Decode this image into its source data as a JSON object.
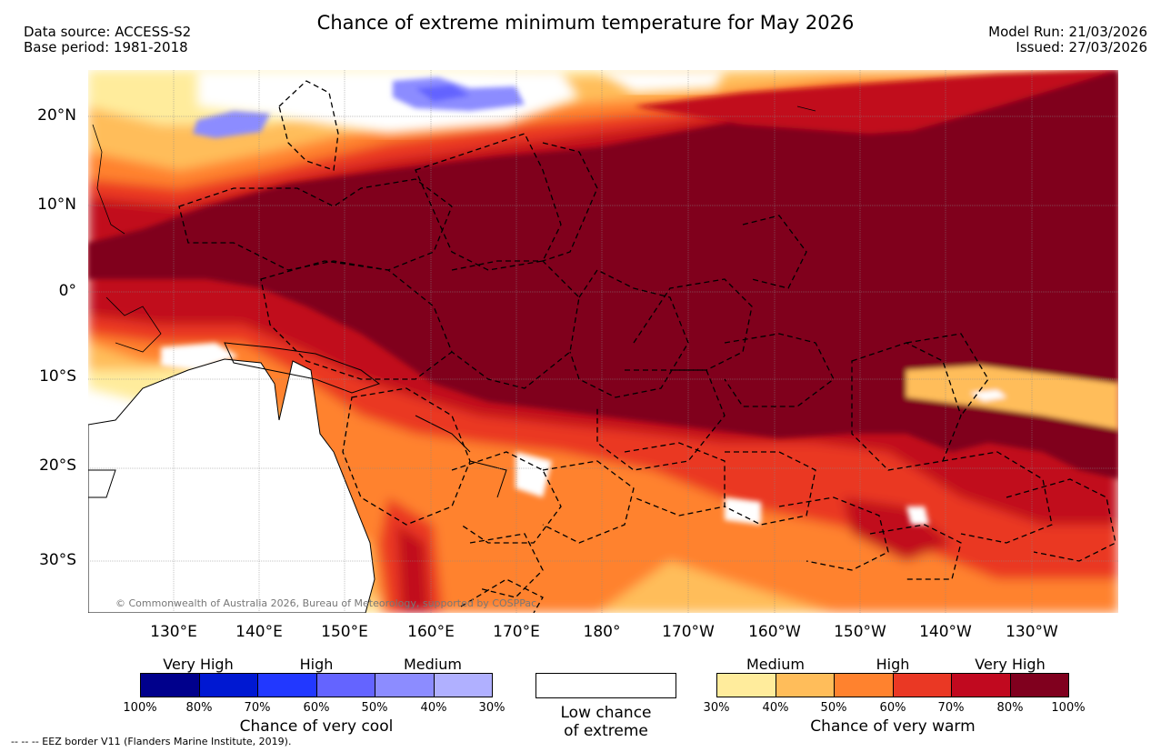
{
  "header": {
    "title": "Chance of extreme minimum temperature for May 2026",
    "data_source": "Data source: ACCESS-S2",
    "base_period": "Base period: 1981-2018",
    "model_run": "Model Run: 21/03/2026",
    "issued": "Issued: 27/03/2026"
  },
  "map": {
    "copyright": "© Commonwealth of Australia 2026, Bureau of Meteorology, supported by COSPPac",
    "lat_labels": [
      "20°N",
      "10°N",
      "0°",
      "10°S",
      "20°S",
      "30°S"
    ],
    "lon_labels": [
      "130°E",
      "140°E",
      "150°E",
      "160°E",
      "170°E",
      "180°",
      "170°W",
      "160°W",
      "150°W",
      "140°W",
      "130°W"
    ]
  },
  "legend": {
    "cool": {
      "bands": [
        "Very High",
        "High",
        "Medium"
      ],
      "ticks": [
        "100%",
        "80%",
        "70%",
        "60%",
        "50%",
        "40%",
        "30%"
      ],
      "label": "Chance of very cool",
      "colors": [
        "#00008c",
        "#0018d2",
        "#2238ff",
        "#6464ff",
        "#8c8cff",
        "#b0b0ff"
      ]
    },
    "low": {
      "line1": "Low chance",
      "line2": "of extreme"
    },
    "warm": {
      "bands": [
        "Medium",
        "High",
        "Very High"
      ],
      "ticks": [
        "30%",
        "40%",
        "50%",
        "60%",
        "70%",
        "80%",
        "100%"
      ],
      "label": "Chance of very warm",
      "colors": [
        "#ffec9c",
        "#ffbd5a",
        "#ff822e",
        "#ea3824",
        "#c1091f",
        "#80001e"
      ]
    }
  },
  "footnote": "--  --  -- EEZ border V11 (Flanders Marine Institute, 2019)."
}
